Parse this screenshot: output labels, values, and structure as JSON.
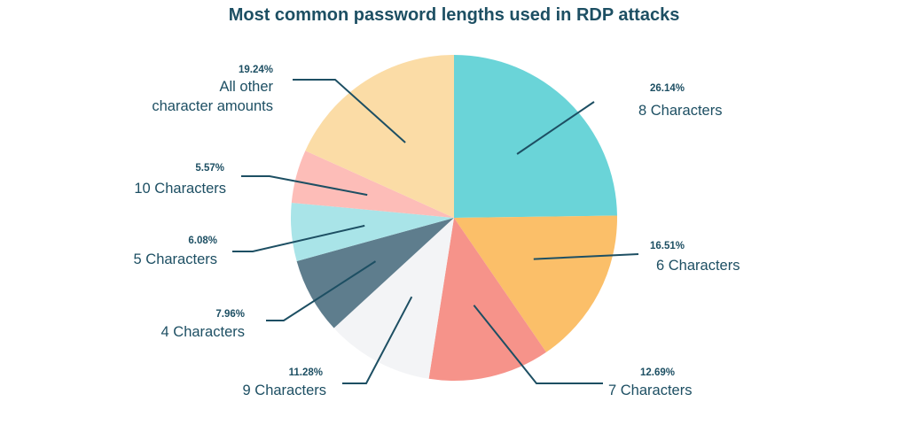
{
  "chart_data": {
    "type": "pie",
    "title": "Most common password lengths used in RDP attacks",
    "unit": "%",
    "slices": [
      {
        "label": "8 Characters",
        "value": 26.14,
        "display": "26.14%",
        "color": "#6ad4d8"
      },
      {
        "label": "6 Characters",
        "value": 16.51,
        "display": "16.51%",
        "color": "#fbbf69"
      },
      {
        "label": "7 Characters",
        "value": 12.69,
        "display": "12.69%",
        "color": "#f6938a"
      },
      {
        "label": "9 Characters",
        "value": 11.28,
        "display": "11.28%",
        "color": "#f3f4f6"
      },
      {
        "label": "4 Characters",
        "value": 7.96,
        "display": "7.96%",
        "color": "#5e7d8d"
      },
      {
        "label": "5 Characters",
        "value": 6.08,
        "display": "6.08%",
        "color": "#a9e4e8"
      },
      {
        "label": "10 Characters",
        "value": 5.57,
        "display": "5.57%",
        "color": "#fdbdb8"
      },
      {
        "label": "All other character amounts",
        "label_lines": [
          "All other",
          "character amounts"
        ],
        "value": 19.24,
        "display": "19.24%",
        "color": "#fbdca6"
      }
    ]
  }
}
